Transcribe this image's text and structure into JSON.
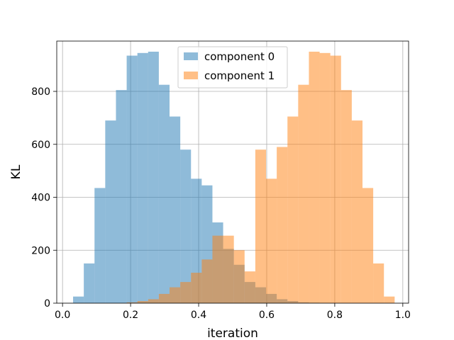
{
  "chart_data": {
    "type": "bar",
    "title": "",
    "xlabel": "iteration",
    "ylabel": "KL",
    "xlim": [
      -0.017,
      1.017
    ],
    "ylim": [
      0,
      990
    ],
    "xticks": [
      0.0,
      0.2,
      0.4,
      0.6,
      0.8,
      1.0
    ],
    "xtick_labels": [
      "0.0",
      "0.2",
      "0.4",
      "0.6",
      "0.8",
      "1.0"
    ],
    "yticks": [
      0,
      200,
      400,
      600,
      800
    ],
    "ytick_labels": [
      "0",
      "200",
      "400",
      "600",
      "800"
    ],
    "grid": true,
    "legend_position": "upper center",
    "bin_edges": [
      0.031,
      0.0625,
      0.094,
      0.1255,
      0.157,
      0.1885,
      0.22,
      0.2515,
      0.283,
      0.3145,
      0.346,
      0.3775,
      0.409,
      0.4405,
      0.472,
      0.5035,
      0.535,
      0.5665,
      0.598,
      0.6295,
      0.661,
      0.6925,
      0.724,
      0.7555,
      0.787,
      0.8185,
      0.85,
      0.8815,
      0.913,
      0.9445,
      0.976
    ],
    "series": [
      {
        "name": "component 0",
        "color": "#1f77b4",
        "alpha": 0.5,
        "values": [
          25,
          150,
          435,
          690,
          805,
          935,
          945,
          950,
          825,
          705,
          580,
          470,
          445,
          305,
          205,
          145,
          80,
          60,
          35,
          15,
          8,
          3,
          2,
          1,
          0,
          0,
          0,
          0,
          0,
          0
        ]
      },
      {
        "name": "component 1",
        "color": "#ff7f0e",
        "alpha": 0.5,
        "values": [
          0,
          0,
          0,
          0,
          0,
          3,
          8,
          15,
          35,
          60,
          80,
          115,
          165,
          255,
          255,
          200,
          120,
          580,
          470,
          590,
          705,
          825,
          950,
          945,
          935,
          805,
          690,
          435,
          150,
          25
        ]
      }
    ]
  }
}
